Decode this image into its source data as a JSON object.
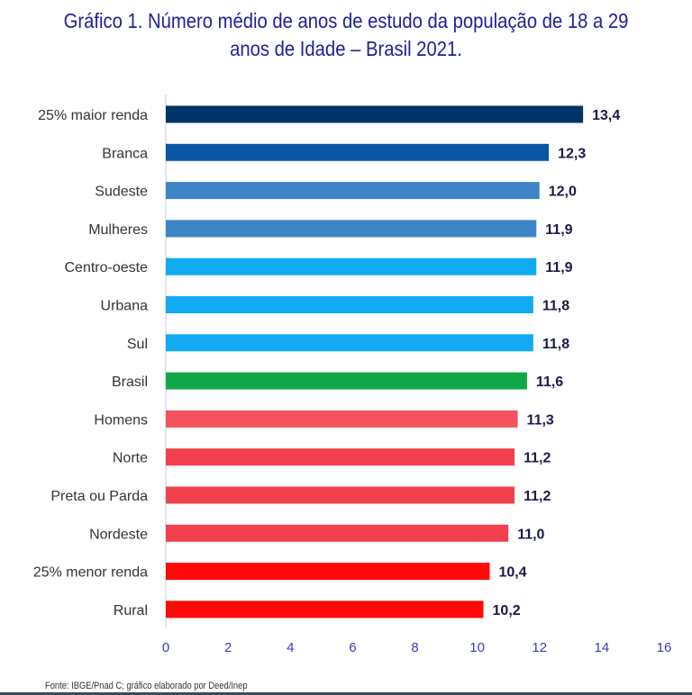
{
  "chart_data": {
    "type": "bar",
    "orientation": "horizontal",
    "title": "Gráfico 1. Número médio de anos de estudo da população de 18 a 29 anos de Idade – Brasil 2021.",
    "title_lines": [
      "Gráfico 1. Número médio de anos de estudo da população de 18 a 29",
      "anos de Idade – Brasil 2021."
    ],
    "categories": [
      "25% maior renda",
      "Branca",
      "Sudeste",
      "Mulheres",
      "Centro-oeste",
      "Urbana",
      "Sul",
      "Brasil",
      "Homens",
      "Norte",
      "Preta ou Parda",
      "Nordeste",
      "25% menor renda",
      "Rural"
    ],
    "values": [
      13.4,
      12.3,
      12.0,
      11.9,
      11.9,
      11.8,
      11.8,
      11.6,
      11.3,
      11.2,
      11.2,
      11.0,
      10.4,
      10.2
    ],
    "value_labels": [
      "13,4",
      "12,3",
      "12,0",
      "11,9",
      "11,9",
      "11,8",
      "11,8",
      "11,6",
      "11,3",
      "11,2",
      "11,2",
      "11,0",
      "10,4",
      "10,2"
    ],
    "colors": [
      "#003366",
      "#0a56a6",
      "#3d85c6",
      "#3d85c6",
      "#12aaf2",
      "#12aaf2",
      "#12aaf2",
      "#12a84a",
      "#f4525e",
      "#f2404e",
      "#f2404e",
      "#f2404e",
      "#fe0a0a",
      "#fe0a0a"
    ],
    "xlim": [
      0,
      16
    ],
    "xticks": [
      "0",
      "2",
      "4",
      "6",
      "8",
      "10",
      "12",
      "14",
      "16"
    ],
    "grid": false,
    "xlabel": "",
    "ylabel": ""
  },
  "source": "Fonte: IBGE/Pnad C; gráfico elaborado por Deed/Inep"
}
